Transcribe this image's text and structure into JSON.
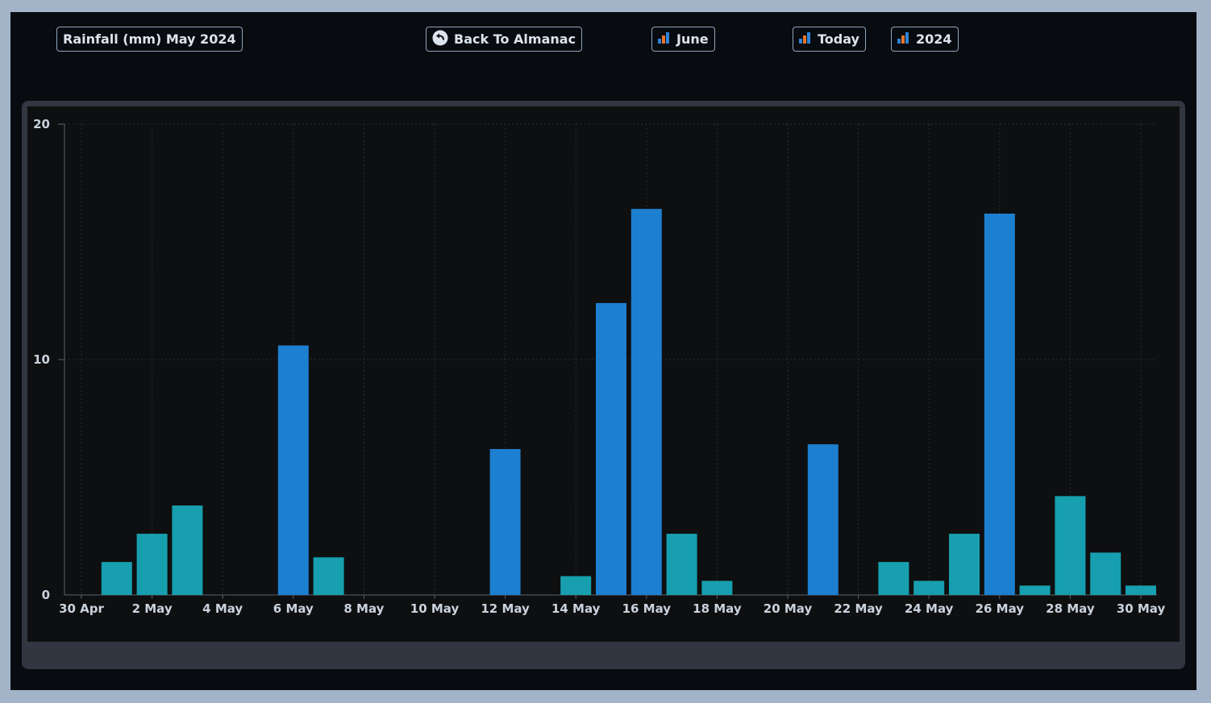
{
  "toolbar": {
    "title": "Rainfall (mm) May 2024",
    "back_label": "Back To Almanac",
    "month_label": "June",
    "today_label": "Today",
    "year_label": "2024"
  },
  "colors": {
    "background": "#080b10",
    "plot_bg": "#0e0f10",
    "frame": "#313640",
    "bar_high": "#1d7fd0",
    "bar_low": "#179faf",
    "text": "#c9d2dd",
    "icon_orange": "#e9742a",
    "icon_blue": "#2f84d8"
  },
  "icons": {
    "back": "circle-arrow-back-icon",
    "chart": "bar-chart-icon"
  },
  "chart_data": {
    "type": "bar",
    "title": "",
    "xlabel": "",
    "ylabel": "",
    "ylim": [
      0,
      20
    ],
    "yticks": [
      0,
      10,
      20
    ],
    "grid": true,
    "categories": [
      "30 Apr",
      "1 May",
      "2 May",
      "3 May",
      "4 May",
      "5 May",
      "6 May",
      "7 May",
      "8 May",
      "9 May",
      "10 May",
      "11 May",
      "12 May",
      "13 May",
      "14 May",
      "15 May",
      "16 May",
      "17 May",
      "18 May",
      "19 May",
      "20 May",
      "21 May",
      "22 May",
      "23 May",
      "24 May",
      "25 May",
      "26 May",
      "27 May",
      "28 May",
      "29 May",
      "30 May"
    ],
    "xtick_labels": [
      "30 Apr",
      "2 May",
      "4 May",
      "6 May",
      "8 May",
      "10 May",
      "12 May",
      "14 May",
      "16 May",
      "18 May",
      "20 May",
      "22 May",
      "24 May",
      "26 May",
      "28 May",
      "30 May"
    ],
    "values": [
      0,
      1.4,
      2.6,
      3.8,
      0,
      0,
      10.6,
      1.6,
      0,
      0,
      0,
      0,
      6.2,
      0,
      0.8,
      12.4,
      16.4,
      2.6,
      0.6,
      0,
      0,
      6.4,
      0,
      1.4,
      0.6,
      2.6,
      16.2,
      0.4,
      4.2,
      1.8,
      0.4
    ],
    "color_threshold": 5
  }
}
